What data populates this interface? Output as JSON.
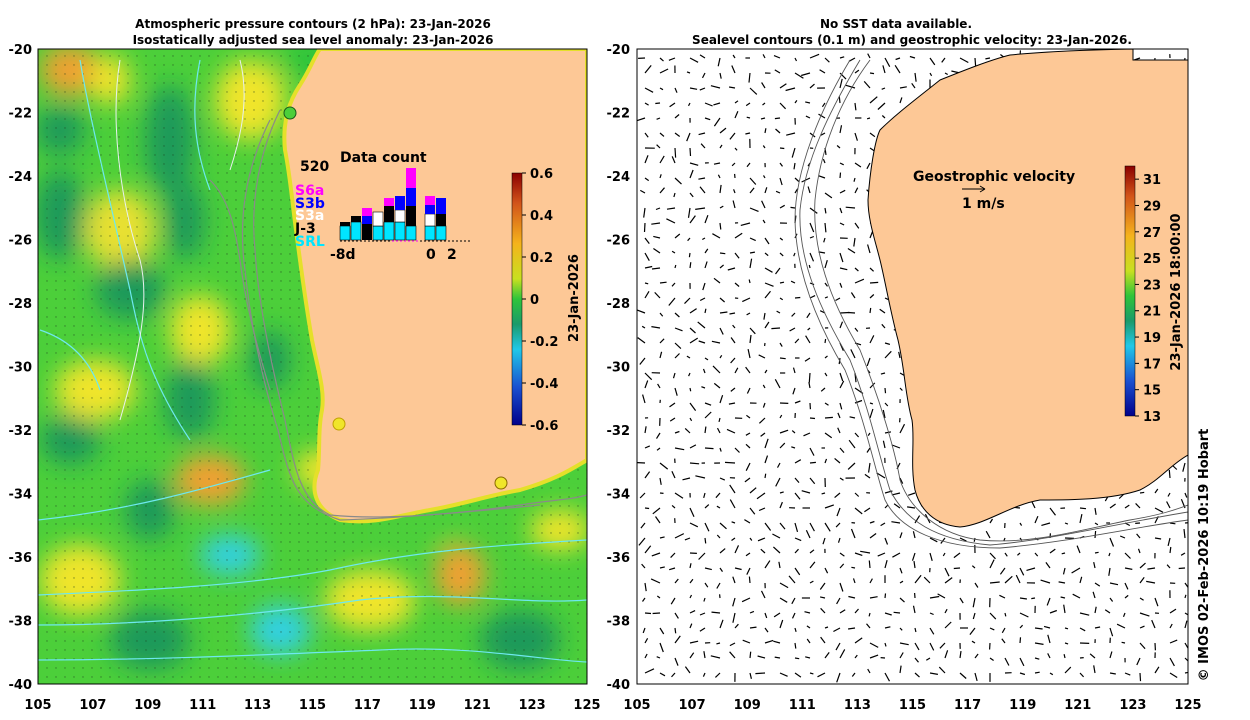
{
  "left_panel": {
    "title_line1": "Atmospheric pressure contours (2 hPa): 23-Jan-2026",
    "title_line2": "Isostatically adjusted sea level anomaly: 23-Jan-2026",
    "colorbar": {
      "label": "23-Jan-2026",
      "ticks": [
        "0.6",
        "0.4",
        "0.2",
        "0",
        "-0.2",
        "-0.4",
        "-0.6"
      ],
      "range": [
        -0.6,
        0.6
      ]
    },
    "data_count": {
      "title": "Data count",
      "max_label": "520",
      "axis_labels": [
        "-8d",
        "0",
        "2"
      ],
      "legend": [
        {
          "name": "S6a",
          "color": "#ff00ff"
        },
        {
          "name": "S3b",
          "color": "#0000ff"
        },
        {
          "name": "S3a",
          "color": "#ffffff"
        },
        {
          "name": "J-3",
          "color": "#000000"
        },
        {
          "name": "SRL",
          "color": "#00e5ff"
        }
      ]
    }
  },
  "right_panel": {
    "title_line1": "No SST data available.",
    "title_line2": "Sealevel contours (0.1 m) and geostrophic velocity: 23-Jan-2026.",
    "velocity_legend": {
      "title": "Geostrophic velocity",
      "scale_label": "1 m/s"
    },
    "colorbar": {
      "label": "23-Jan-2026 18:00:00",
      "ticks": [
        "31",
        "29",
        "27",
        "25",
        "23",
        "21",
        "19",
        "17",
        "15",
        "13"
      ],
      "range": [
        13,
        32
      ]
    }
  },
  "axes": {
    "x_ticks": [
      "105",
      "107",
      "109",
      "111",
      "113",
      "115",
      "117",
      "119",
      "121",
      "123",
      "125"
    ],
    "y_ticks": [
      "-20",
      "-22",
      "-24",
      "-26",
      "-28",
      "-30",
      "-32",
      "-34",
      "-36",
      "-38",
      "-40"
    ]
  },
  "credit": "© IMOS 02-Feb-2026 10:19 Hobart",
  "colors": {
    "land": "#fdc896",
    "sla_base": "#4ccf3a",
    "sla_positive": "#f0e52a",
    "sla_strong_positive": "#f0a030",
    "sla_negative": "#1f9a5a",
    "sla_cyan": "#30d0e0"
  }
}
